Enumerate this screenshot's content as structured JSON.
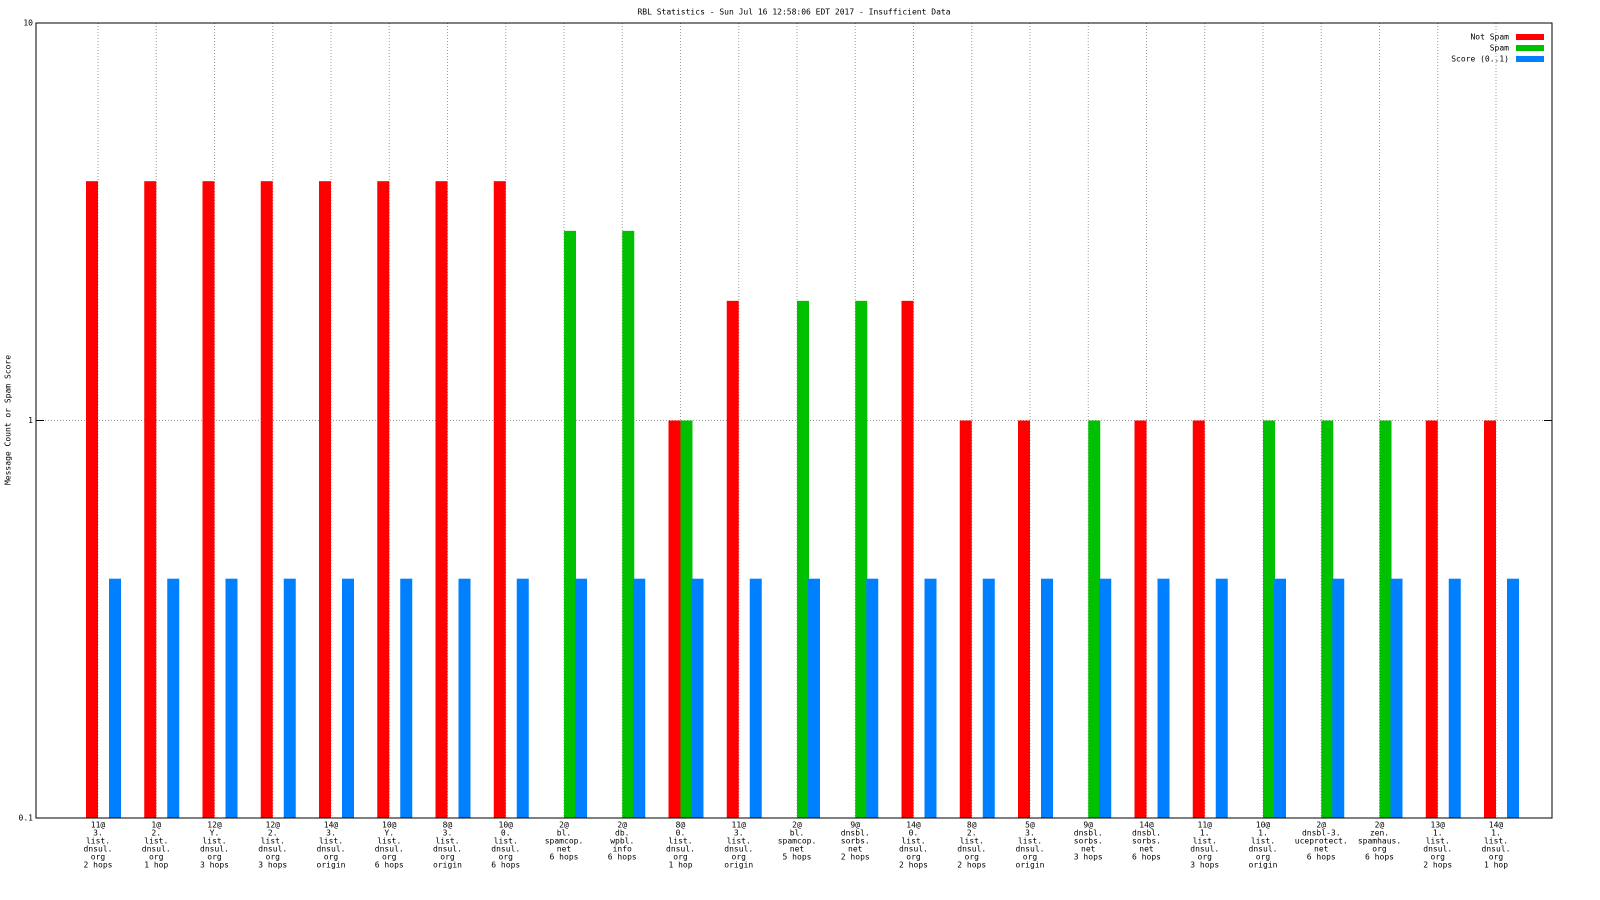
{
  "chart_data": {
    "type": "bar",
    "title": "RBL Statistics - Sun Jul 16 12:58:06 EDT 2017 - Insufficient Data",
    "y_label": "Message Count or Spam Score",
    "log_scale": true,
    "grid": true,
    "legend": "top-right",
    "ylim": [
      0.1,
      10
    ],
    "yticks": [
      0.1,
      1,
      10
    ],
    "categories": [
      [
        "11@",
        "3.",
        "list.",
        "dnsul.",
        "org",
        "2 hops"
      ],
      [
        "1@",
        "2.",
        "list.",
        "dnsul.",
        "org",
        "1 hop"
      ],
      [
        "12@",
        "Y.",
        "list.",
        "dnsul.",
        "org",
        "3 hops"
      ],
      [
        "12@",
        "2.",
        "list.",
        "dnsul.",
        "org",
        "3 hops"
      ],
      [
        "14@",
        "3.",
        "list.",
        "dnsul.",
        "org",
        "origin"
      ],
      [
        "10@",
        "Y.",
        "list.",
        "dnsul.",
        "org",
        "6 hops"
      ],
      [
        "8@",
        "3.",
        "list.",
        "dnsul.",
        "org",
        "origin"
      ],
      [
        "10@",
        "0.",
        "list.",
        "dnsul.",
        "org",
        "6 hops"
      ],
      [
        "2@",
        "bl.",
        "spamcop.",
        "net",
        "6 hops"
      ],
      [
        "2@",
        "db.",
        "wpbl.",
        "info",
        "6 hops"
      ],
      [
        "8@",
        "0.",
        "list.",
        "dnsul.",
        "org",
        "1 hop"
      ],
      [
        "11@",
        "3.",
        "list.",
        "dnsul.",
        "org",
        "origin"
      ],
      [
        "2@",
        "bl.",
        "spamcop.",
        "net",
        "5 hops"
      ],
      [
        "9@",
        "dnsbl.",
        "sorbs.",
        "net",
        "2 hops"
      ],
      [
        "14@",
        "0.",
        "list.",
        "dnsul.",
        "org",
        "2 hops"
      ],
      [
        "8@",
        "2.",
        "list.",
        "dnsul.",
        "org",
        "2 hops"
      ],
      [
        "5@",
        "3.",
        "list.",
        "dnsul.",
        "org",
        "origin"
      ],
      [
        "9@",
        "dnsbl.",
        "sorbs.",
        "net",
        "3 hops"
      ],
      [
        "14@",
        "dnsbl.",
        "sorbs.",
        "net",
        "6 hops"
      ],
      [
        "11@",
        "1.",
        "list.",
        "dnsul.",
        "org",
        "3 hops"
      ],
      [
        "10@",
        "1.",
        "list.",
        "dnsul.",
        "org",
        "origin"
      ],
      [
        "2@",
        "dnsbl-3.",
        "uceprotect.",
        "net",
        "6 hops"
      ],
      [
        "2@",
        "zen.",
        "spamhaus.",
        "org",
        "6 hops"
      ],
      [
        "13@",
        "1.",
        "list.",
        "dnsul.",
        "org",
        "2 hops"
      ],
      [
        "14@",
        "1.",
        "list.",
        "dnsul.",
        "org",
        "1 hop"
      ]
    ],
    "series": [
      {
        "name": "Not Spam",
        "color": "#ff0000",
        "values": [
          4,
          4,
          4,
          4,
          4,
          4,
          4,
          4,
          null,
          null,
          1,
          2,
          null,
          null,
          2,
          1,
          1,
          null,
          1,
          1,
          null,
          null,
          null,
          1,
          1
        ]
      },
      {
        "name": "Spam",
        "color": "#00c000",
        "values": [
          null,
          null,
          null,
          null,
          null,
          null,
          null,
          null,
          3,
          3,
          1,
          null,
          2,
          2,
          null,
          null,
          null,
          1,
          null,
          null,
          1,
          1,
          1,
          null,
          null
        ]
      },
      {
        "name": "Score (0..1)",
        "color": "#0080ff",
        "values": [
          0.4,
          0.4,
          0.4,
          0.4,
          0.4,
          0.4,
          0.4,
          0.4,
          0.4,
          0.4,
          0.4,
          0.4,
          0.4,
          0.4,
          0.4,
          0.4,
          0.4,
          0.4,
          0.4,
          0.4,
          0.4,
          0.4,
          0.4,
          0.4,
          0.4
        ]
      }
    ]
  }
}
